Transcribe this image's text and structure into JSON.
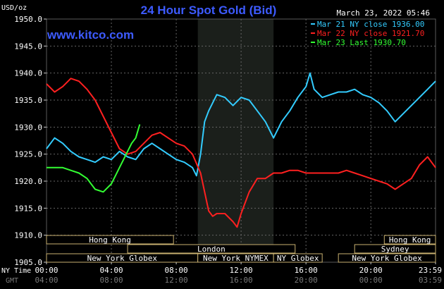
{
  "header": {
    "unit": "USD/oz",
    "title": "24 Hour Spot Gold (Bid)",
    "timestamp": "March 23, 2022 05:46",
    "site": "www.kitco.com"
  },
  "chart_data": {
    "type": "line",
    "title": "24 Hour Spot Gold (Bid)",
    "ylabel": "USD/oz",
    "ylim": [
      1905,
      1950
    ],
    "y_ticks": [
      "1950.0",
      "1945.0",
      "1940.0",
      "1935.0",
      "1930.0",
      "1925.0",
      "1920.0",
      "1915.0",
      "1910.0",
      "1905.0"
    ],
    "x_tick_labels_ny": [
      "00:00",
      "04:00",
      "08:00",
      "12:00",
      "16:00",
      "20:00",
      "23:59"
    ],
    "x_tick_labels_gmt": [
      "04:00",
      "08:00",
      "12:00",
      "16:00",
      "20:00",
      "00:00",
      "03:59"
    ],
    "x_axis_label_ny": "NY Time",
    "x_axis_label_gmt": "GMT",
    "x_unit": "hours since 00:00 NY time",
    "legend": [
      {
        "label": "Mar 21 NY close 1936.00",
        "color": "#33ccff"
      },
      {
        "label": "Mar 22 NY close 1921.70",
        "color": "#ff2020"
      },
      {
        "label": "Mar 23 Last 1930.70",
        "color": "#33ff33"
      }
    ],
    "shaded_region": {
      "start": 9.33,
      "end": 14.0
    },
    "series": [
      {
        "color": "#33ccff",
        "x": [
          0,
          0.5,
          1,
          1.5,
          2,
          2.5,
          3,
          3.5,
          4,
          4.5,
          5,
          5.5,
          6,
          6.5,
          7,
          7.5,
          8,
          8.5,
          9,
          9.25,
          9.5,
          9.75,
          10,
          10.5,
          11,
          11.5,
          12,
          12.5,
          13,
          13.5,
          14,
          14.5,
          15,
          15.5,
          16,
          16.25,
          16.5,
          17,
          17.5,
          18,
          18.5,
          19,
          19.5,
          20,
          20.5,
          21,
          21.5,
          22,
          22.5,
          23,
          23.5,
          23.99
        ],
        "y": [
          1926,
          1928,
          1927,
          1925.5,
          1924.5,
          1924,
          1923.5,
          1924.5,
          1924,
          1925.5,
          1924.5,
          1924,
          1926,
          1927,
          1926,
          1925,
          1924,
          1923.5,
          1922.5,
          1921,
          1925,
          1931,
          1933,
          1936,
          1935.5,
          1934,
          1935.5,
          1935,
          1933,
          1931,
          1928,
          1931,
          1933,
          1935.5,
          1937.5,
          1940,
          1937,
          1935.5,
          1936,
          1936.5,
          1936.5,
          1937,
          1936,
          1935.5,
          1934.5,
          1933,
          1931,
          1932.5,
          1934,
          1935.5,
          1937,
          1938.5
        ]
      },
      {
        "color": "#ff2020",
        "x": [
          0,
          0.5,
          1,
          1.5,
          2,
          2.5,
          3,
          3.5,
          4,
          4.5,
          5,
          5.5,
          6,
          6.5,
          7,
          7.5,
          8,
          8.5,
          9,
          9.5,
          10,
          10.25,
          10.5,
          11,
          11.5,
          11.75,
          12,
          12.5,
          13,
          13.5,
          14,
          14.5,
          15,
          15.5,
          16,
          16.5,
          17,
          17.5,
          18,
          18.5,
          19,
          19.5,
          20,
          20.5,
          21,
          21.5,
          22,
          22.5,
          23,
          23.5,
          23.99
        ],
        "y": [
          1938,
          1936.5,
          1937.5,
          1939,
          1938.5,
          1937,
          1935,
          1932,
          1929,
          1926,
          1925,
          1925.5,
          1927,
          1928.5,
          1929,
          1928,
          1927,
          1926.5,
          1925,
          1921.5,
          1914.5,
          1913.5,
          1914,
          1914,
          1912.5,
          1911.5,
          1914,
          1918,
          1920.5,
          1920.5,
          1921.5,
          1921.5,
          1922,
          1922,
          1921.5,
          1921.5,
          1921.5,
          1921.5,
          1921.5,
          1922,
          1921.5,
          1921,
          1920.5,
          1920,
          1919.5,
          1918.5,
          1919.5,
          1920.5,
          1923,
          1924.5,
          1922.5
        ]
      },
      {
        "color": "#33ff33",
        "x": [
          0,
          0.5,
          1,
          1.5,
          2,
          2.5,
          3,
          3.5,
          4,
          4.25,
          4.5,
          4.75,
          5,
          5.25,
          5.5,
          5.75
        ],
        "y": [
          1922.5,
          1922.5,
          1922.5,
          1922,
          1921.5,
          1920.5,
          1918.5,
          1918,
          1919.5,
          1921,
          1922.5,
          1924,
          1925.5,
          1927,
          1928,
          1930.5
        ]
      }
    ]
  },
  "sessions": [
    {
      "label": "Hong Kong",
      "row": 1,
      "start": 0,
      "end": 7.83
    },
    {
      "label": "London",
      "row": 2,
      "start": 5.0,
      "end": 15.33
    },
    {
      "label": "New York Globex",
      "row": 3,
      "start": 0,
      "end": 9.33
    },
    {
      "label": "New York NYMEX",
      "row": 3,
      "start": 9.33,
      "end": 14.0
    },
    {
      "label": "NY Globex",
      "row": 3,
      "start": 14.0,
      "end": 17.0
    },
    {
      "label": "Hong Kong",
      "row": 1,
      "start": 20.83,
      "end": 23.99
    },
    {
      "label": "Sydney",
      "row": 2,
      "start": 19.0,
      "end": 23.99
    },
    {
      "label": "New York Globex",
      "row": 3,
      "start": 18.0,
      "end": 23.99
    }
  ]
}
